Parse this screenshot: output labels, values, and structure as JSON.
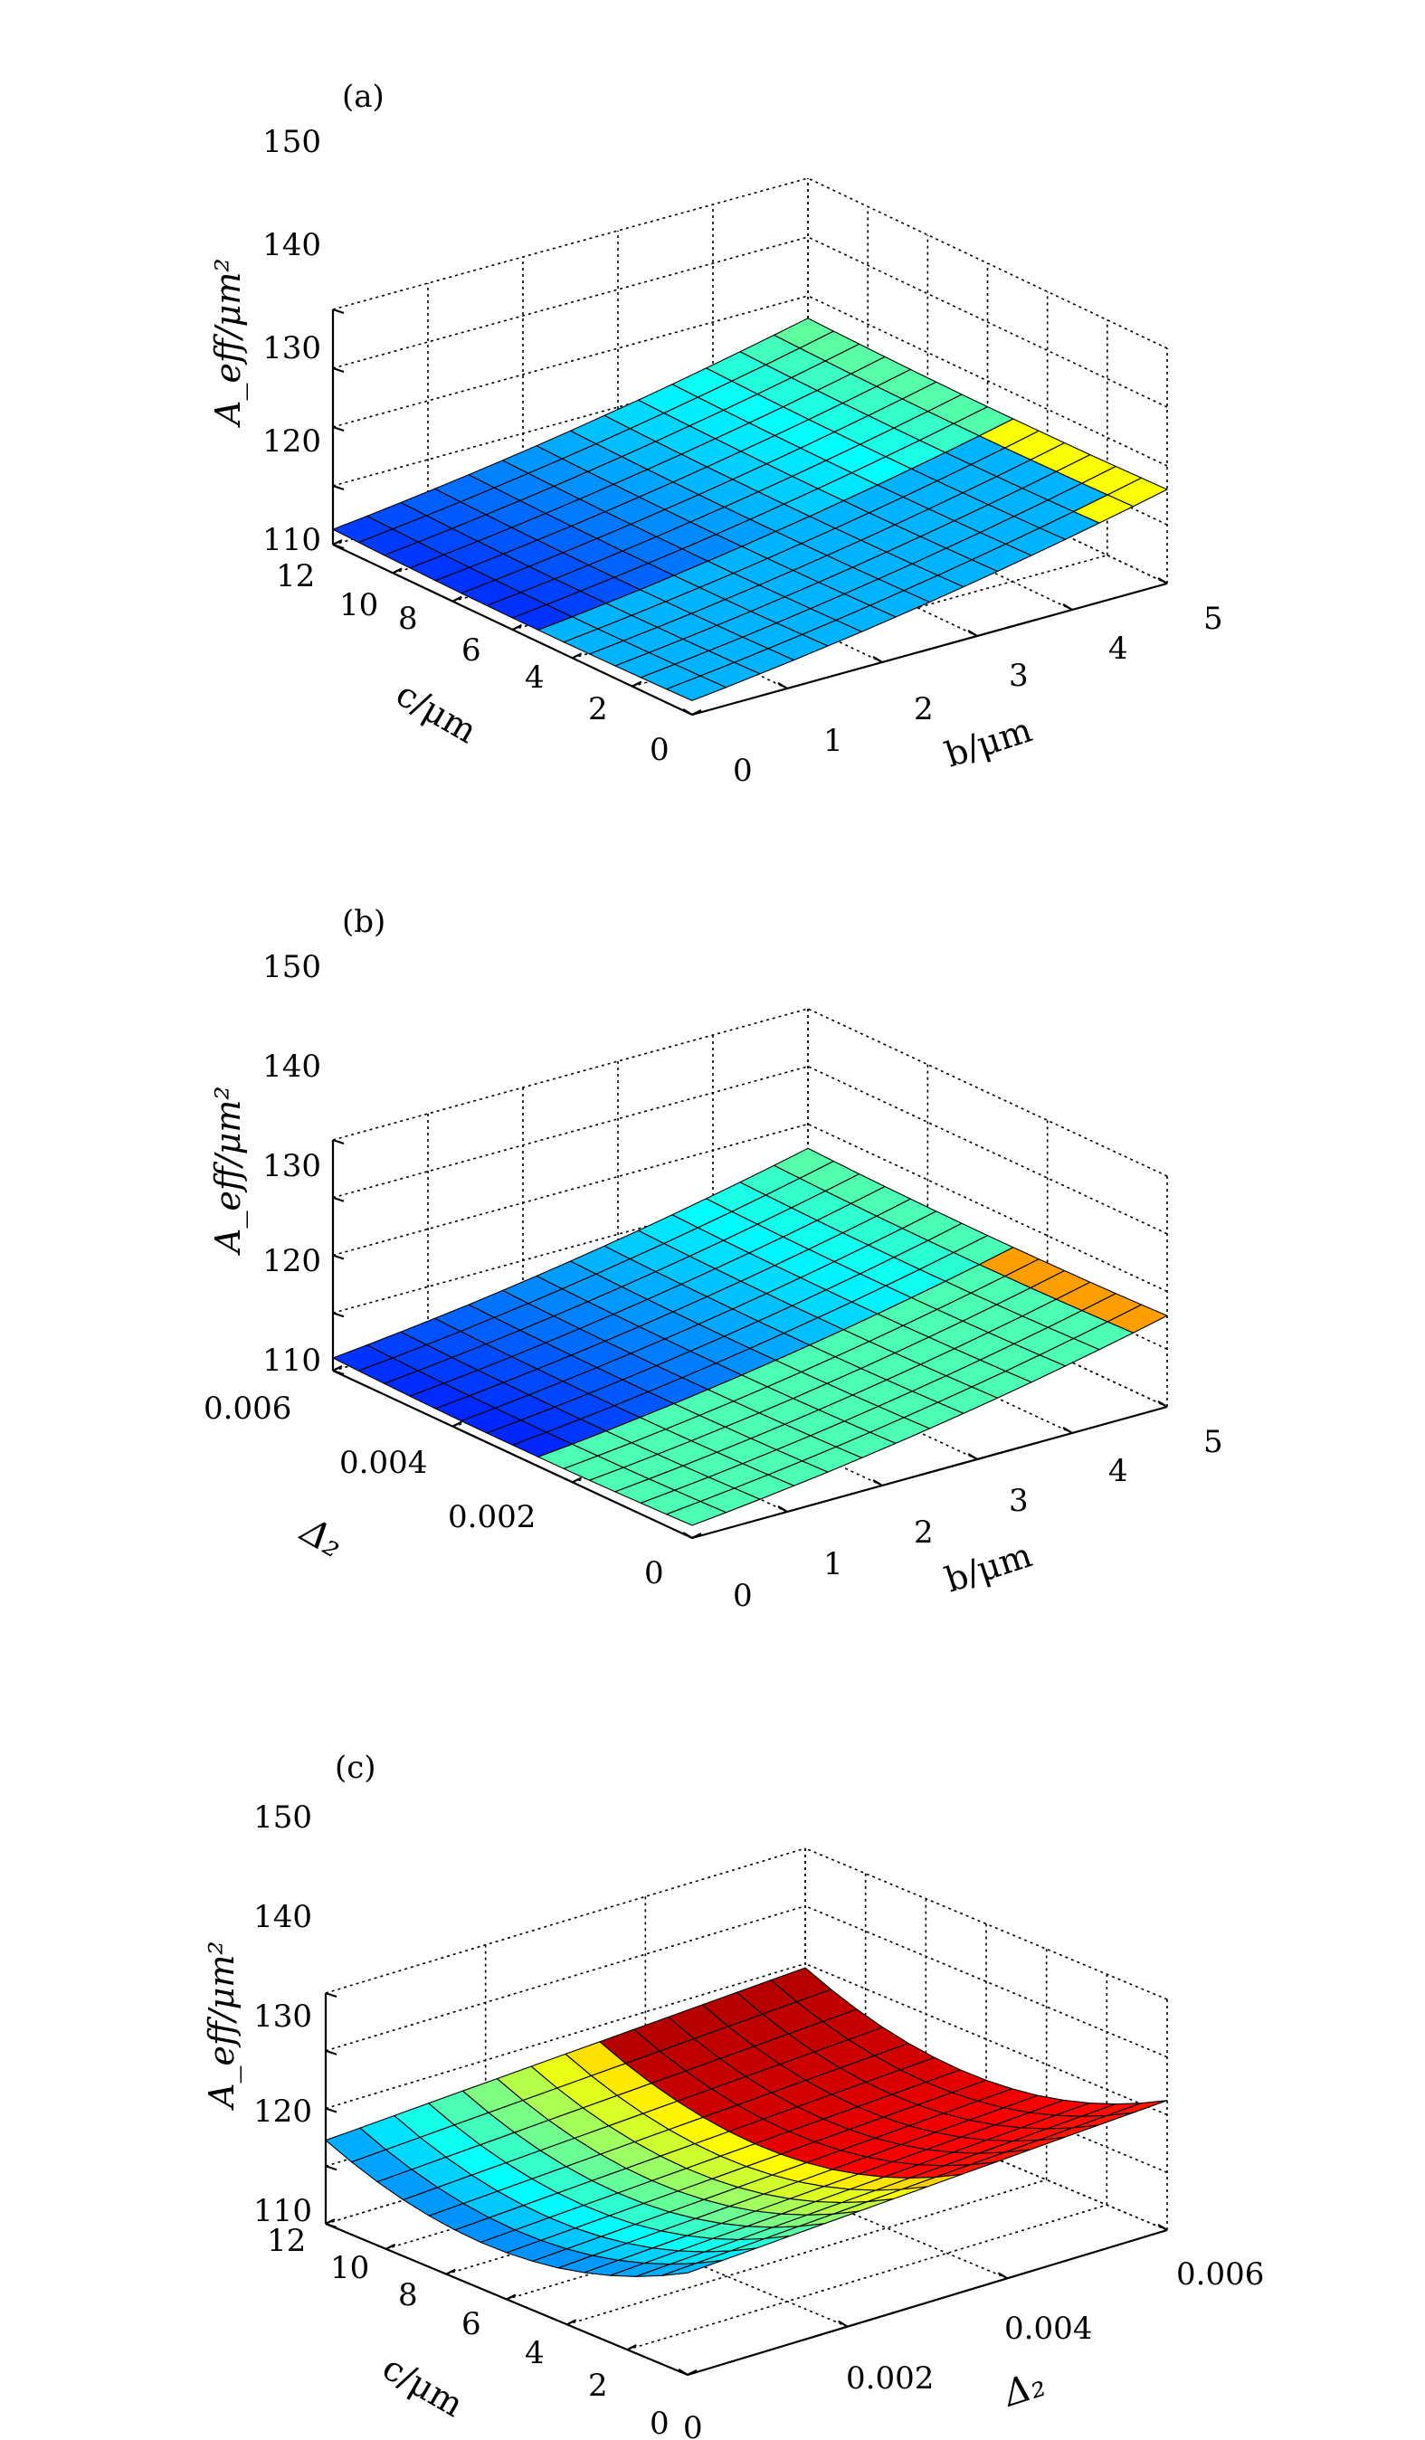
{
  "colors": {
    "axis": "#000000",
    "grid": "#000000",
    "mesh_edge": "#000000",
    "colormap": [
      "#00008f",
      "#0000ff",
      "#0080ff",
      "#00ffff",
      "#80ff80",
      "#ffff00",
      "#ff8000",
      "#ff0000",
      "#800000"
    ]
  },
  "chart_data": [
    {
      "type": "surface",
      "panel_label": "(a)",
      "zlabel": "A_eff/μm²",
      "xlabel": "b/μm",
      "ylabel": "c/μm",
      "x_ticks": [
        "0",
        "1",
        "2",
        "3",
        "4",
        "5"
      ],
      "y_ticks": [
        "0",
        "2",
        "4",
        "6",
        "8",
        "10",
        "12"
      ],
      "z_ticks": [
        "110",
        "120",
        "130",
        "140",
        "150"
      ],
      "xlim": [
        0,
        5
      ],
      "ylim": [
        0,
        12
      ],
      "zlim": [
        110,
        150
      ],
      "view": "b axis front-right, c axis front-left",
      "grid": true
    },
    {
      "type": "surface",
      "panel_label": "(b)",
      "zlabel": "A_eff/μm²",
      "xlabel": "b/μm",
      "ylabel": "Δ₂",
      "x_ticks": [
        "0",
        "1",
        "2",
        "3",
        "4",
        "5"
      ],
      "y_ticks": [
        "0",
        "0.002",
        "0.004",
        "0.006"
      ],
      "z_ticks": [
        "110",
        "120",
        "130",
        "140",
        "150"
      ],
      "xlim": [
        0,
        5
      ],
      "ylim": [
        0,
        0.006
      ],
      "zlim": [
        110,
        150
      ],
      "view": "b axis front-right, Δ₂ axis front-left",
      "grid": true
    },
    {
      "type": "surface",
      "panel_label": "(c)",
      "zlabel": "A_eff/μm²",
      "xlabel": "Δ₂",
      "ylabel": "c/μm",
      "x_ticks": [
        "0",
        "0.002",
        "0.004",
        "0.006"
      ],
      "y_ticks": [
        "0",
        "2",
        "4",
        "6",
        "8",
        "10",
        "12"
      ],
      "z_ticks": [
        "110",
        "120",
        "130",
        "140",
        "150"
      ],
      "xlim": [
        0,
        0.006
      ],
      "ylim": [
        0,
        12
      ],
      "zlim": [
        110,
        150
      ],
      "view": "Δ₂ axis front-right, c axis front-left",
      "grid": true
    }
  ]
}
